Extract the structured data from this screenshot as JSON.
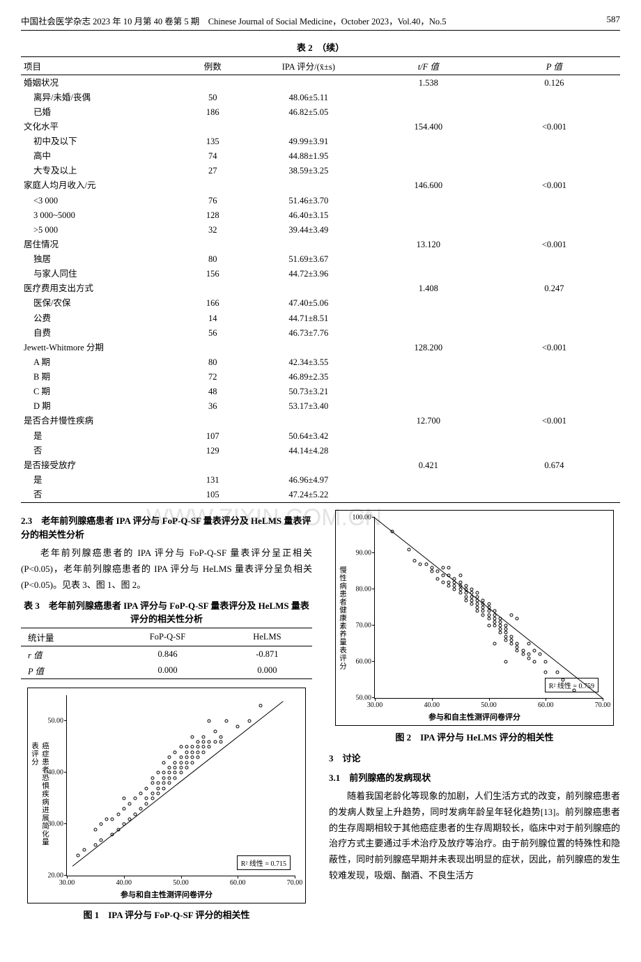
{
  "header": {
    "journal": "中国社会医学杂志 2023 年 10 月第 40 卷第 5 期　Chinese Journal of Social Medicine，October 2023，Vol.40，No.5",
    "page": "587"
  },
  "table2": {
    "caption": "表 2　（续）",
    "columns": [
      "项目",
      "例数",
      "IPA 评分/(x̄±s)",
      "t/F 值",
      "P 值"
    ],
    "rows": [
      {
        "label": "婚姻状况",
        "tf": "1.538",
        "p": "0.126",
        "group": true
      },
      {
        "label": "离异/未婚/丧偶",
        "n": "50",
        "ipa": "48.06±5.11",
        "indent": true
      },
      {
        "label": "已婚",
        "n": "186",
        "ipa": "46.82±5.05",
        "indent": true
      },
      {
        "label": "文化水平",
        "tf": "154.400",
        "p": "<0.001",
        "group": true
      },
      {
        "label": "初中及以下",
        "n": "135",
        "ipa": "49.99±3.91",
        "indent": true
      },
      {
        "label": "高中",
        "n": "74",
        "ipa": "44.88±1.95",
        "indent": true
      },
      {
        "label": "大专及以上",
        "n": "27",
        "ipa": "38.59±3.25",
        "indent": true
      },
      {
        "label": "家庭人均月收入/元",
        "tf": "146.600",
        "p": "<0.001",
        "group": true
      },
      {
        "label": "<3 000",
        "n": "76",
        "ipa": "51.46±3.70",
        "indent": true
      },
      {
        "label": "3 000~5000",
        "n": "128",
        "ipa": "46.40±3.15",
        "indent": true
      },
      {
        "label": ">5 000",
        "n": "32",
        "ipa": "39.44±3.49",
        "indent": true
      },
      {
        "label": "居住情况",
        "tf": "13.120",
        "p": "<0.001",
        "group": true
      },
      {
        "label": "独居",
        "n": "80",
        "ipa": "51.69±3.67",
        "indent": true
      },
      {
        "label": "与家人同住",
        "n": "156",
        "ipa": "44.72±3.96",
        "indent": true
      },
      {
        "label": "医疗费用支出方式",
        "tf": "1.408",
        "p": "0.247",
        "group": true
      },
      {
        "label": "医保/农保",
        "n": "166",
        "ipa": "47.40±5.06",
        "indent": true
      },
      {
        "label": "公费",
        "n": "14",
        "ipa": "44.71±8.51",
        "indent": true
      },
      {
        "label": "自费",
        "n": "56",
        "ipa": "46.73±7.76",
        "indent": true
      },
      {
        "label": "Jewett-Whitmore 分期",
        "tf": "128.200",
        "p": "<0.001",
        "group": true
      },
      {
        "label": "A 期",
        "n": "80",
        "ipa": "42.34±3.55",
        "indent": true
      },
      {
        "label": "B 期",
        "n": "72",
        "ipa": "46.89±2.35",
        "indent": true
      },
      {
        "label": "C 期",
        "n": "48",
        "ipa": "50.73±3.21",
        "indent": true
      },
      {
        "label": "D 期",
        "n": "36",
        "ipa": "53.17±3.40",
        "indent": true
      },
      {
        "label": "是否合并慢性疾病",
        "tf": "12.700",
        "p": "<0.001",
        "group": true
      },
      {
        "label": "是",
        "n": "107",
        "ipa": "50.64±3.42",
        "indent": true
      },
      {
        "label": "否",
        "n": "129",
        "ipa": "44.14±4.28",
        "indent": true
      },
      {
        "label": "是否接受放疗",
        "tf": "0.421",
        "p": "0.674",
        "group": true
      },
      {
        "label": "是",
        "n": "131",
        "ipa": "46.96±4.97",
        "indent": true
      },
      {
        "label": "否",
        "n": "105",
        "ipa": "47.24±5.22",
        "indent": true
      }
    ]
  },
  "section23": {
    "title": "2.3　老年前列腺癌患者 IPA 评分与 FoP-Q-SF 量表评分及 HeLMS 量表评分的相关性分析",
    "body": "老年前列腺癌患者的 IPA 评分与 FoP-Q-SF 量表评分呈正相关(P<0.05)，老年前列腺癌患者的 IPA 评分与 HeLMS 量表评分呈负相关(P<0.05)。见表 3、图 1、图 2。"
  },
  "table3": {
    "caption": "表 3　老年前列腺癌患者 IPA 评分与 FoP-Q-SF 量表评分及 HeLMS 量表评分的相关性分析",
    "columns": [
      "统计量",
      "FoP-Q-SF",
      "HeLMS"
    ],
    "rows": [
      {
        "stat": "r 值",
        "fop": "0.846",
        "helms": "-0.871"
      },
      {
        "stat": "P 值",
        "fop": "0.000",
        "helms": "0.000"
      }
    ]
  },
  "fig1": {
    "caption": "图 1　IPA 评分与 FoP-Q-SF 评分的相关性",
    "ylabel": "癌症患者恐惧疾病进展简化量表评分",
    "xlabel": "参与和自主性测评问卷评分",
    "r2_text": "R² 线性 = 0.715",
    "xlim": [
      30,
      70
    ],
    "xticks": [
      30,
      40,
      50,
      60,
      70
    ],
    "ylim": [
      20,
      55
    ],
    "yticks": [
      20,
      30,
      40,
      50
    ],
    "line": {
      "x1": 31,
      "y1": 22,
      "x2": 68,
      "y2": 54
    },
    "points": [
      [
        32,
        24
      ],
      [
        33,
        25
      ],
      [
        35,
        26
      ],
      [
        36,
        27
      ],
      [
        36,
        30
      ],
      [
        38,
        28
      ],
      [
        38,
        31
      ],
      [
        39,
        29
      ],
      [
        39,
        32
      ],
      [
        40,
        30
      ],
      [
        40,
        33
      ],
      [
        41,
        31
      ],
      [
        41,
        34
      ],
      [
        42,
        32
      ],
      [
        42,
        35
      ],
      [
        43,
        33
      ],
      [
        43,
        36
      ],
      [
        44,
        34
      ],
      [
        44,
        35
      ],
      [
        44,
        37
      ],
      [
        45,
        35
      ],
      [
        45,
        36
      ],
      [
        45,
        38
      ],
      [
        45,
        39
      ],
      [
        46,
        36
      ],
      [
        46,
        37
      ],
      [
        46,
        38
      ],
      [
        46,
        40
      ],
      [
        47,
        37
      ],
      [
        47,
        38
      ],
      [
        47,
        39
      ],
      [
        47,
        40
      ],
      [
        47,
        42
      ],
      [
        48,
        38
      ],
      [
        48,
        39
      ],
      [
        48,
        40
      ],
      [
        48,
        41
      ],
      [
        48,
        43
      ],
      [
        49,
        39
      ],
      [
        49,
        40
      ],
      [
        49,
        41
      ],
      [
        49,
        42
      ],
      [
        49,
        44
      ],
      [
        50,
        40
      ],
      [
        50,
        41
      ],
      [
        50,
        42
      ],
      [
        50,
        43
      ],
      [
        50,
        45
      ],
      [
        51,
        41
      ],
      [
        51,
        42
      ],
      [
        51,
        43
      ],
      [
        51,
        44
      ],
      [
        51,
        45
      ],
      [
        52,
        42
      ],
      [
        52,
        43
      ],
      [
        52,
        44
      ],
      [
        52,
        45
      ],
      [
        52,
        47
      ],
      [
        53,
        43
      ],
      [
        53,
        44
      ],
      [
        53,
        45
      ],
      [
        53,
        46
      ],
      [
        54,
        44
      ],
      [
        54,
        45
      ],
      [
        54,
        46
      ],
      [
        54,
        47
      ],
      [
        55,
        45
      ],
      [
        55,
        46
      ],
      [
        55,
        50
      ],
      [
        56,
        46
      ],
      [
        56,
        48
      ],
      [
        57,
        46
      ],
      [
        57,
        47
      ],
      [
        58,
        50
      ],
      [
        60,
        49
      ],
      [
        62,
        50
      ],
      [
        64,
        53
      ],
      [
        35,
        29
      ],
      [
        37,
        31
      ],
      [
        40,
        35
      ]
    ]
  },
  "fig2": {
    "caption": "图 2　IPA 评分与 HeLMS 评分的相关性",
    "ylabel": "慢性病患者健康素养量表评分",
    "xlabel": "参与和自主性测评问卷评分",
    "r2_text": "R² 线性 = 0.759",
    "xlim": [
      30,
      70
    ],
    "xticks": [
      30,
      40,
      50,
      60,
      70
    ],
    "ylim": [
      50,
      100
    ],
    "yticks": [
      50,
      60,
      70,
      80,
      90,
      100
    ],
    "line": {
      "x1": 30,
      "y1": 100,
      "x2": 70,
      "y2": 50
    },
    "points": [
      [
        33,
        96
      ],
      [
        36,
        91
      ],
      [
        37,
        88
      ],
      [
        38,
        87
      ],
      [
        39,
        87
      ],
      [
        40,
        85
      ],
      [
        40,
        86
      ],
      [
        41,
        83
      ],
      [
        41,
        85
      ],
      [
        42,
        82
      ],
      [
        42,
        84
      ],
      [
        42,
        86
      ],
      [
        43,
        81
      ],
      [
        43,
        82
      ],
      [
        43,
        84
      ],
      [
        44,
        80
      ],
      [
        44,
        81
      ],
      [
        44,
        82
      ],
      [
        44,
        83
      ],
      [
        45,
        79
      ],
      [
        45,
        80
      ],
      [
        45,
        81
      ],
      [
        45,
        82
      ],
      [
        46,
        77
      ],
      [
        46,
        78
      ],
      [
        46,
        79
      ],
      [
        46,
        80
      ],
      [
        46,
        81
      ],
      [
        47,
        76
      ],
      [
        47,
        77
      ],
      [
        47,
        78
      ],
      [
        47,
        79
      ],
      [
        47,
        80
      ],
      [
        48,
        74
      ],
      [
        48,
        75
      ],
      [
        48,
        76
      ],
      [
        48,
        77
      ],
      [
        48,
        78
      ],
      [
        48,
        79
      ],
      [
        49,
        73
      ],
      [
        49,
        74
      ],
      [
        49,
        75
      ],
      [
        49,
        76
      ],
      [
        49,
        77
      ],
      [
        50,
        72
      ],
      [
        50,
        73
      ],
      [
        50,
        74
      ],
      [
        50,
        75
      ],
      [
        50,
        76
      ],
      [
        51,
        70
      ],
      [
        51,
        71
      ],
      [
        51,
        72
      ],
      [
        51,
        73
      ],
      [
        51,
        74
      ],
      [
        52,
        68
      ],
      [
        52,
        69
      ],
      [
        52,
        70
      ],
      [
        52,
        71
      ],
      [
        52,
        72
      ],
      [
        53,
        66
      ],
      [
        53,
        67
      ],
      [
        53,
        68
      ],
      [
        53,
        69
      ],
      [
        53,
        70
      ],
      [
        54,
        65
      ],
      [
        54,
        66
      ],
      [
        54,
        67
      ],
      [
        54,
        73
      ],
      [
        55,
        63
      ],
      [
        55,
        64
      ],
      [
        55,
        65
      ],
      [
        55,
        72
      ],
      [
        56,
        62
      ],
      [
        56,
        63
      ],
      [
        57,
        61
      ],
      [
        57,
        62
      ],
      [
        57,
        65
      ],
      [
        58,
        60
      ],
      [
        58,
        63
      ],
      [
        59,
        62
      ],
      [
        60,
        57
      ],
      [
        60,
        60
      ],
      [
        62,
        57
      ],
      [
        63,
        55
      ],
      [
        65,
        52
      ],
      [
        43,
        86
      ],
      [
        45,
        84
      ],
      [
        50,
        70
      ],
      [
        53,
        60
      ],
      [
        51,
        65
      ]
    ]
  },
  "section3": {
    "title": "3　讨论"
  },
  "section31": {
    "title": "3.1　前列腺癌的发病现状",
    "body": "随着我国老龄化等现象的加剧，人们生活方式的改变，前列腺癌患者的发病人数呈上升趋势，同时发病年龄呈年轻化趋势[13]。前列腺癌患者的生存周期相较于其他癌症患者的生存周期较长，临床中对于前列腺癌的治疗方式主要通过手术治疗及放疗等治疗。由于前列腺位置的特殊性和隐蔽性，同时前列腺癌早期并未表现出明显的症状，因此，前列腺癌的发生较难发现，吸烟、酗酒、不良生活方"
  },
  "watermark": "WWW.ZIXIN.COM.CN"
}
